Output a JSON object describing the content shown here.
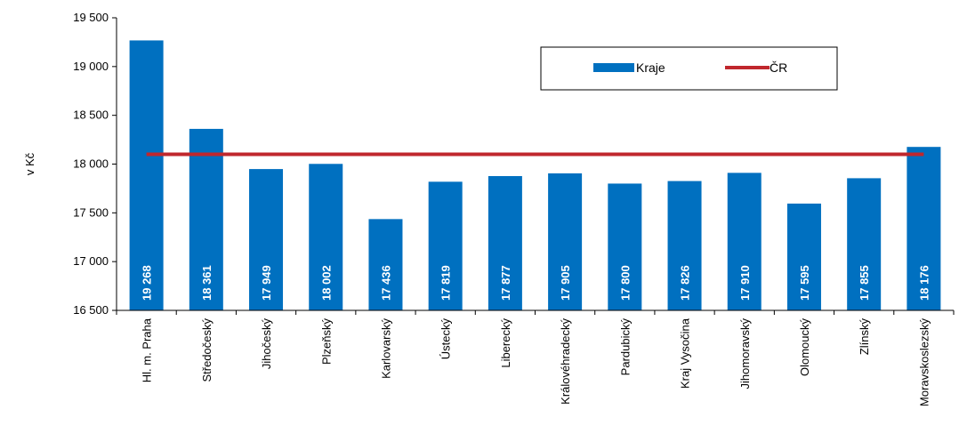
{
  "chart_data": {
    "type": "bar",
    "ylabel": "v Kč",
    "ylim": [
      16500,
      19500
    ],
    "ytick_step": 500,
    "ytick_labels": [
      "16 500",
      "17 000",
      "17 500",
      "18 000",
      "18 500",
      "19 000",
      "19 500"
    ],
    "categories": [
      "Hl. m. Praha",
      "Středočeský",
      "Jihočeský",
      "Plzeňský",
      "Karlovarský",
      "Ústecký",
      "Liberecký",
      "Královéhradecký",
      "Pardubický",
      "Kraj Vysočina",
      "Jihomoravský",
      "Olomoucký",
      "Zlínský",
      "Moravskoslezský"
    ],
    "series": [
      {
        "name": "Kraje",
        "type": "bar",
        "color": "#0070c0",
        "values": [
          19268,
          18361,
          17949,
          18002,
          17436,
          17819,
          17877,
          17905,
          17800,
          17826,
          17910,
          17595,
          17855,
          18176
        ],
        "labels": [
          "19 268",
          "18 361",
          "17 949",
          "18 002",
          "17 436",
          "17 819",
          "17 877",
          "17 905",
          "17 800",
          "17 826",
          "17 910",
          "17 595",
          "17 855",
          "18 176"
        ]
      },
      {
        "name": "ČR",
        "type": "line",
        "color": "#c0272d",
        "value": 18100
      }
    ],
    "legend_position": "top-right",
    "grid": false
  }
}
